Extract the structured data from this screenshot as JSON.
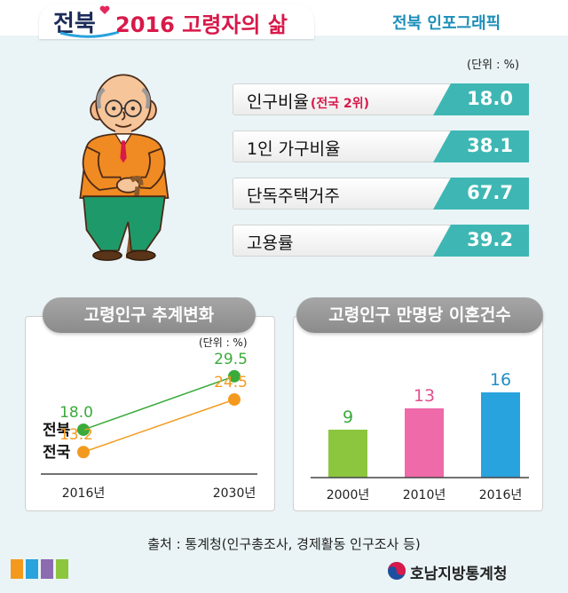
{
  "header": {
    "logo": "전북",
    "title": "2016 고령자의 삶",
    "brand_tag": "전북 인포그래픽"
  },
  "stats": {
    "unit": "(단위 : %)",
    "items": [
      {
        "label": "인구비율",
        "sub": "(전국 2위)",
        "value": "18.0"
      },
      {
        "label": "1인 가구비율",
        "sub": "",
        "value": "38.1"
      },
      {
        "label": "단독주택거주",
        "sub": "",
        "value": "67.7"
      },
      {
        "label": "고용률",
        "sub": "",
        "value": "39.2"
      }
    ]
  },
  "chart_data": [
    {
      "type": "line",
      "title": "고령인구 추계변화",
      "unit": "(단위 : %)",
      "x": [
        "2016년",
        "2030년"
      ],
      "series": [
        {
          "name": "전북",
          "values": [
            18.0,
            29.5
          ],
          "labels": [
            "18.0",
            "29.5"
          ],
          "color": "#3aab3a"
        },
        {
          "name": "전국",
          "values": [
            13.2,
            24.5
          ],
          "labels": [
            "13.2",
            "24.5"
          ],
          "color": "#f39a1e"
        }
      ]
    },
    {
      "type": "bar",
      "title": "고령인구 만명당 이혼건수",
      "categories": [
        "2000년",
        "2010년",
        "2016년"
      ],
      "values": [
        9,
        13,
        16
      ],
      "labels": [
        "9",
        "13",
        "16"
      ],
      "colors": [
        "#8cc63f",
        "#ef6aa8",
        "#29a3dd"
      ],
      "label_colors": [
        "#3aab3a",
        "#e0528f",
        "#1f8fc8"
      ]
    }
  ],
  "footer": {
    "source": "출처 : 통계청(인구총조사, 경제활동 인구조사 등)",
    "agency": "호남지방통계청",
    "swatches": [
      "#f39a1e",
      "#29a3dd",
      "#8c6bb1",
      "#8cc63f"
    ]
  }
}
